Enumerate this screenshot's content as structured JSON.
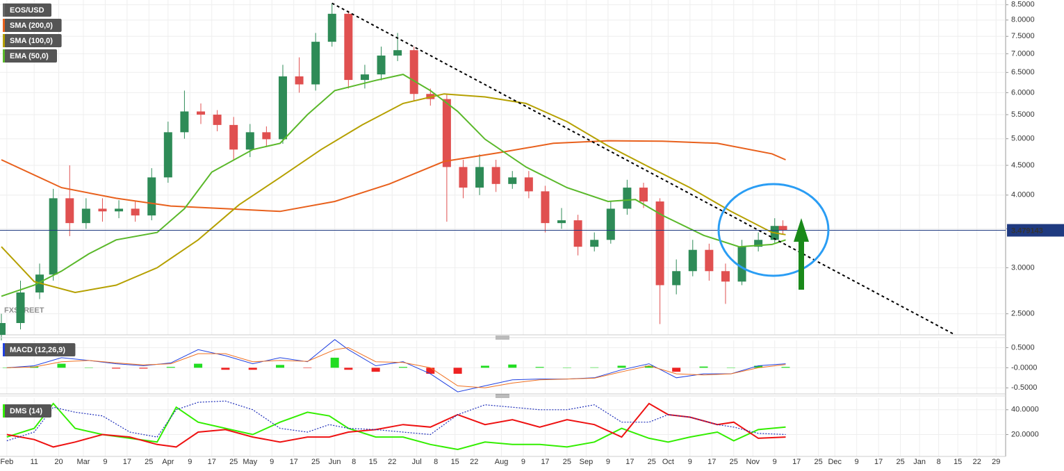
{
  "chart_data": [
    {
      "type": "candlestick",
      "candles": {
        "name": "EOS/USD",
        "x": [
          -2,
          5,
          12,
          17,
          23,
          29,
          35,
          41,
          47,
          53,
          59,
          65,
          71,
          77,
          83,
          89,
          95,
          101,
          107,
          113,
          119,
          125,
          131,
          137,
          143,
          149,
          155,
          161,
          167,
          173,
          179,
          185,
          191,
          197,
          203,
          209,
          215,
          221,
          227,
          233,
          239,
          245,
          251,
          257,
          263,
          269,
          275,
          281,
          284
        ],
        "open": [
          2.3,
          2.41,
          2.72,
          2.92,
          3.95,
          3.58,
          3.79,
          3.75,
          3.79,
          3.69,
          4.29,
          5.13,
          5.57,
          5.5,
          5.28,
          4.79,
          5.13,
          4.99,
          6.4,
          6.2,
          7.34,
          8.2,
          6.31,
          6.45,
          6.95,
          7.1,
          5.97,
          5.85,
          4.47,
          4.12,
          4.47,
          4.18,
          4.29,
          4.06,
          3.58,
          3.62,
          3.26,
          3.35,
          3.79,
          4.12,
          3.9,
          2.8,
          2.96,
          3.22,
          2.96,
          2.84,
          3.26,
          3.35,
          3.54
        ],
        "high": [
          2.5,
          2.85,
          3.05,
          4.1,
          4.5,
          3.95,
          3.95,
          3.92,
          3.9,
          4.45,
          5.35,
          6.05,
          5.75,
          5.6,
          5.45,
          5.3,
          5.25,
          6.7,
          6.9,
          7.6,
          8.55,
          8.3,
          6.7,
          7.2,
          7.6,
          7.2,
          6.1,
          5.95,
          4.6,
          4.7,
          4.6,
          4.4,
          4.4,
          4.15,
          3.8,
          3.7,
          3.45,
          3.9,
          4.25,
          4.2,
          3.95,
          3.1,
          3.35,
          3.3,
          3.05,
          3.35,
          3.45,
          3.65,
          3.62
        ],
        "low": [
          2.25,
          2.35,
          2.65,
          2.85,
          3.4,
          3.5,
          3.6,
          3.65,
          3.6,
          3.62,
          4.2,
          5.0,
          5.3,
          5.15,
          4.6,
          4.65,
          4.85,
          4.9,
          6.0,
          6.05,
          7.2,
          6.1,
          6.1,
          6.3,
          6.8,
          5.8,
          5.7,
          3.6,
          3.95,
          4.0,
          4.05,
          4.1,
          3.95,
          3.45,
          3.5,
          3.15,
          3.2,
          3.3,
          3.7,
          3.8,
          2.4,
          2.7,
          2.9,
          2.85,
          2.6,
          2.8,
          3.2,
          3.3,
          3.42
        ],
        "close": [
          2.41,
          2.72,
          2.92,
          3.95,
          3.58,
          3.79,
          3.75,
          3.79,
          3.69,
          4.29,
          5.13,
          5.57,
          5.5,
          5.28,
          4.79,
          5.13,
          4.99,
          6.4,
          6.2,
          7.34,
          8.2,
          6.31,
          6.45,
          6.95,
          7.1,
          5.97,
          5.85,
          4.47,
          4.12,
          4.47,
          4.18,
          4.29,
          4.06,
          3.58,
          3.62,
          3.26,
          3.35,
          3.79,
          4.12,
          3.9,
          2.8,
          2.96,
          3.22,
          2.96,
          2.84,
          3.26,
          3.35,
          3.54,
          3.48
        ],
        "up_color": "#2e8b57",
        "down_color": "#e05050"
      },
      "series": [
        {
          "name": "SMA (200,0)",
          "color": "#e8601c",
          "x": [
            -2,
            20,
            40,
            60,
            80,
            100,
            120,
            140,
            160,
            180,
            200,
            220,
            240,
            260,
            280,
            285
          ],
          "values": [
            4.6,
            4.12,
            3.95,
            3.83,
            3.79,
            3.75,
            3.9,
            4.18,
            4.57,
            4.73,
            4.91,
            4.96,
            4.95,
            4.91,
            4.71,
            4.6
          ]
        },
        {
          "name": "SMA (100,0)",
          "color": "#b5a000",
          "x": [
            -2,
            10,
            25,
            40,
            55,
            70,
            85,
            100,
            115,
            130,
            145,
            160,
            175,
            190,
            205,
            220,
            235,
            250,
            265,
            280,
            285
          ],
          "values": [
            3.26,
            2.84,
            2.72,
            2.8,
            3.0,
            3.35,
            3.85,
            4.29,
            4.79,
            5.28,
            5.75,
            5.97,
            5.9,
            5.75,
            5.35,
            4.86,
            4.47,
            4.12,
            3.75,
            3.45,
            3.42
          ]
        },
        {
          "name": "EMA (50,0)",
          "color": "#5ab82a",
          "x": [
            -2,
            10,
            20,
            30,
            40,
            55,
            65,
            75,
            90,
            100,
            110,
            120,
            135,
            145,
            155,
            165,
            175,
            190,
            205,
            220,
            230,
            240,
            255,
            268,
            280,
            285
          ],
          "values": [
            2.68,
            2.8,
            2.96,
            3.17,
            3.35,
            3.45,
            3.79,
            4.38,
            4.79,
            4.91,
            5.5,
            6.05,
            6.3,
            6.45,
            6.05,
            5.57,
            4.99,
            4.47,
            4.12,
            3.9,
            3.93,
            3.69,
            3.41,
            3.26,
            3.29,
            3.35
          ]
        }
      ],
      "trendline": {
        "x": [
          119,
          347
        ],
        "values": [
          8.55,
          2.3
        ]
      },
      "last_price": 3.479143,
      "watermark": "FXSTREET",
      "log_scale": true,
      "ylim": [
        2.3,
        8.66
      ],
      "yticks": [
        {
          "value": 2.5,
          "label": "2.5000"
        },
        {
          "value": 3,
          "label": "3.0000"
        },
        {
          "value": 3.5,
          "label": "3.5000"
        },
        {
          "value": 4,
          "label": "4.0000"
        },
        {
          "value": 4.5,
          "label": "4.5000"
        },
        {
          "value": 5,
          "label": "5.0000"
        },
        {
          "value": 5.5,
          "label": "5.5000"
        },
        {
          "value": 6,
          "label": "6.0000"
        },
        {
          "value": 6.5,
          "label": "6.5000"
        },
        {
          "value": 7,
          "label": "7.0000"
        },
        {
          "value": 7.5,
          "label": "7.5000"
        },
        {
          "value": 8,
          "label": "8.0000"
        },
        {
          "value": 8.5,
          "label": "8.5000"
        }
      ],
      "xlim": [
        -2.5,
        365.5
      ],
      "xticks": [
        {
          "value": 0,
          "label": "Feb"
        },
        {
          "value": 10,
          "label": "11"
        },
        {
          "value": 19,
          "label": "20"
        },
        {
          "value": 28,
          "label": "Mar"
        },
        {
          "value": 36,
          "label": "9"
        },
        {
          "value": 44,
          "label": "17"
        },
        {
          "value": 52,
          "label": "25"
        },
        {
          "value": 59,
          "label": "Apr"
        },
        {
          "value": 67,
          "label": "9"
        },
        {
          "value": 75,
          "label": "17"
        },
        {
          "value": 83,
          "label": "25"
        },
        {
          "value": 89,
          "label": "May"
        },
        {
          "value": 97,
          "label": "9"
        },
        {
          "value": 105,
          "label": "17"
        },
        {
          "value": 113,
          "label": "25"
        },
        {
          "value": 120,
          "label": "Jun"
        },
        {
          "value": 127,
          "label": "8"
        },
        {
          "value": 134,
          "label": "15"
        },
        {
          "value": 141,
          "label": "22"
        },
        {
          "value": 150,
          "label": "Jul"
        },
        {
          "value": 157,
          "label": "8"
        },
        {
          "value": 164,
          "label": "15"
        },
        {
          "value": 171,
          "label": "22"
        },
        {
          "value": 181,
          "label": "Aug"
        },
        {
          "value": 189,
          "label": "9"
        },
        {
          "value": 197,
          "label": "17"
        },
        {
          "value": 205,
          "label": "25"
        },
        {
          "value": 212,
          "label": "Sep"
        },
        {
          "value": 220,
          "label": "9"
        },
        {
          "value": 228,
          "label": "17"
        },
        {
          "value": 236,
          "label": "25"
        },
        {
          "value": 242,
          "label": "Oct"
        },
        {
          "value": 250,
          "label": "9"
        },
        {
          "value": 258,
          "label": "17"
        },
        {
          "value": 266,
          "label": "25"
        },
        {
          "value": 273,
          "label": "Nov"
        },
        {
          "value": 281,
          "label": "9"
        },
        {
          "value": 289,
          "label": "17"
        },
        {
          "value": 297,
          "label": "25"
        },
        {
          "value": 303,
          "label": "Dec"
        },
        {
          "value": 311,
          "label": "9"
        },
        {
          "value": 319,
          "label": "17"
        },
        {
          "value": 327,
          "label": "25"
        },
        {
          "value": 334,
          "label": "Jan"
        },
        {
          "value": 341,
          "label": "8"
        },
        {
          "value": 348,
          "label": "15"
        },
        {
          "value": 355,
          "label": "22"
        },
        {
          "value": 362,
          "label": "29"
        }
      ],
      "grid": true
    },
    {
      "type": "macd",
      "title": "MACD (12,26,9)",
      "x": [
        0,
        10,
        20,
        30,
        40,
        50,
        60,
        70,
        80,
        90,
        100,
        110,
        120,
        125,
        135,
        145,
        155,
        165,
        175,
        185,
        195,
        205,
        215,
        225,
        235,
        245,
        255,
        265,
        275,
        285
      ],
      "series": [
        {
          "color": "#2040e0",
          "values": [
            0,
            0.05,
            0.25,
            0.18,
            0.1,
            0.05,
            0.12,
            0.45,
            0.3,
            0.1,
            0.25,
            0.15,
            0.7,
            0.45,
            0.05,
            0.15,
            -0.15,
            -0.6,
            -0.45,
            -0.3,
            -0.28,
            -0.28,
            -0.25,
            -0.05,
            0.1,
            -0.25,
            -0.15,
            -0.15,
            0.05,
            0.1
          ]
        },
        {
          "color": "#f07020",
          "values": [
            0,
            0.02,
            0.15,
            0.18,
            0.12,
            0.07,
            0.1,
            0.35,
            0.35,
            0.15,
            0.18,
            0.16,
            0.45,
            0.5,
            0.15,
            0.13,
            0,
            -0.45,
            -0.5,
            -0.38,
            -0.3,
            -0.28,
            -0.26,
            -0.1,
            0.05,
            -0.15,
            -0.18,
            -0.15,
            0,
            0.08
          ]
        }
      ],
      "histogram": {
        "up_color": "#22dd22",
        "down_color": "#ee2222",
        "values": [
          0,
          0.03,
          0.1,
          0,
          -0.02,
          -0.02,
          0.02,
          0.1,
          -0.05,
          -0.05,
          0.07,
          -0.01,
          0.25,
          -0.05,
          -0.1,
          0.02,
          -0.15,
          -0.15,
          0.05,
          0.08,
          0.02,
          0,
          0.01,
          0.05,
          0.05,
          -0.1,
          0.03,
          0,
          0.05,
          0.02
        ]
      },
      "ylim": [
        -0.65,
        0.68
      ],
      "yticks": [
        {
          "value": 0.5,
          "label": "0.5000"
        },
        {
          "value": 0,
          "label": "-0.0000"
        },
        {
          "value": -0.5,
          "label": "-0.5000"
        }
      ],
      "grid": true
    },
    {
      "type": "line",
      "title": "DMS (14)",
      "x": [
        0,
        10,
        17,
        25,
        35,
        45,
        55,
        62,
        70,
        80,
        90,
        100,
        110,
        118,
        125,
        135,
        145,
        155,
        165,
        175,
        185,
        195,
        205,
        215,
        225,
        235,
        242,
        250,
        260,
        266,
        275,
        285
      ],
      "series": [
        {
          "color": "#33ee00",
          "values": [
            18,
            25,
            45,
            25,
            20,
            17,
            14,
            42,
            30,
            25,
            20,
            30,
            38,
            35,
            25,
            18,
            18,
            12,
            8,
            14,
            12,
            12,
            10,
            14,
            25,
            17,
            14,
            18,
            22,
            15,
            24,
            26
          ]
        },
        {
          "color": "#ee1111",
          "values": [
            20,
            16,
            10,
            14,
            20,
            18,
            12,
            10,
            22,
            24,
            18,
            14,
            18,
            18,
            22,
            24,
            28,
            26,
            36,
            28,
            32,
            26,
            32,
            28,
            18,
            45,
            36,
            34,
            28,
            30,
            17,
            18
          ]
        },
        {
          "color": "#1a2ab8",
          "dashed": true,
          "values": [
            15,
            22,
            42,
            38,
            35,
            22,
            18,
            40,
            46,
            47,
            40,
            25,
            22,
            28,
            25,
            24,
            22,
            20,
            36,
            44,
            42,
            40,
            40,
            44,
            30,
            30,
            36,
            34,
            28,
            26,
            21,
            20
          ]
        }
      ],
      "ylim": [
        2.4,
        49.4
      ],
      "yticks": [
        {
          "value": 40,
          "label": "40.0000"
        },
        {
          "value": 20,
          "label": "20.0000"
        }
      ],
      "grid": true
    }
  ]
}
